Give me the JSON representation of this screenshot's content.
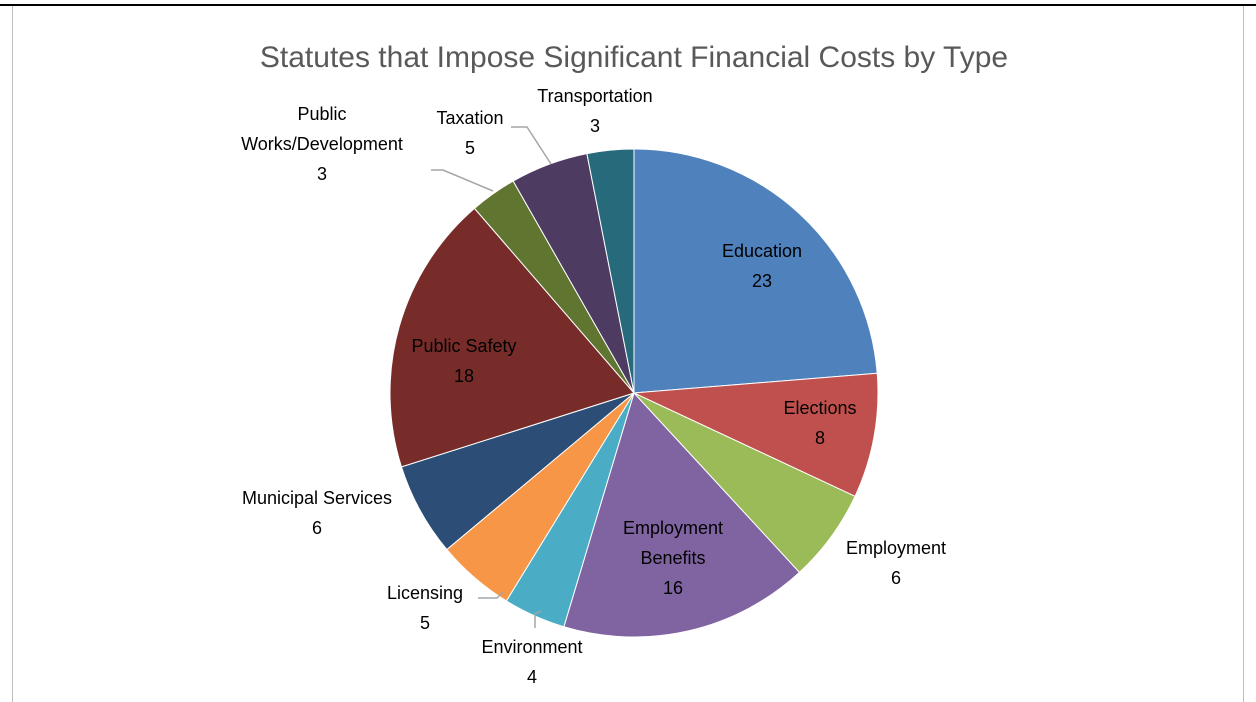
{
  "chart_data": {
    "type": "pie",
    "title": "Statutes that Impose Significant Financial Costs by Type",
    "slices": [
      {
        "label": "Education",
        "value": 23,
        "color": "#4f81bd"
      },
      {
        "label": "Elections",
        "value": 8,
        "color": "#c0504d"
      },
      {
        "label": "Employment",
        "value": 6,
        "color": "#9bbb59"
      },
      {
        "label": "Employment Benefits",
        "value": 16,
        "color": "#8064a2"
      },
      {
        "label": "Environment",
        "value": 4,
        "color": "#4bacc6"
      },
      {
        "label": "Licensing",
        "value": 5,
        "color": "#f79646"
      },
      {
        "label": "Municipal Services",
        "value": 6,
        "color": "#2c4d75"
      },
      {
        "label": "Public Safety",
        "value": 18,
        "color": "#772c2a"
      },
      {
        "label": "Public Works/Development",
        "value": 3,
        "color": "#5f7530"
      },
      {
        "label": "Taxation",
        "value": 5,
        "color": "#4d3b62"
      },
      {
        "label": "Transportation",
        "value": 3,
        "color": "#276a7c"
      }
    ],
    "legend": "none",
    "data_labels": "category and value"
  }
}
